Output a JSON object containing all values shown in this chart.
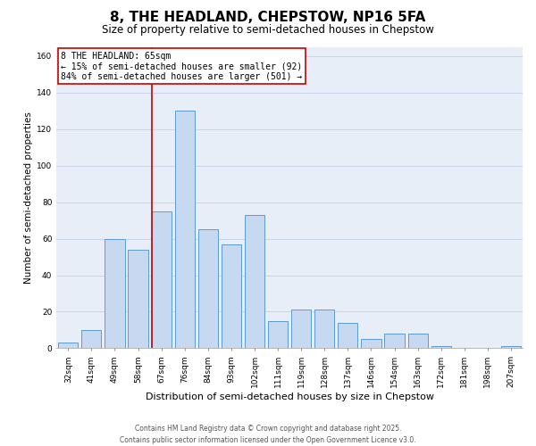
{
  "title": "8, THE HEADLAND, CHEPSTOW, NP16 5FA",
  "subtitle": "Size of property relative to semi-detached houses in Chepstow",
  "xlabel": "Distribution of semi-detached houses by size in Chepstow",
  "ylabel": "Number of semi-detached properties",
  "categories": [
    "32sqm",
    "41sqm",
    "49sqm",
    "58sqm",
    "67sqm",
    "76sqm",
    "84sqm",
    "93sqm",
    "102sqm",
    "111sqm",
    "119sqm",
    "128sqm",
    "137sqm",
    "146sqm",
    "154sqm",
    "163sqm",
    "172sqm",
    "181sqm",
    "198sqm",
    "207sqm"
  ],
  "values": [
    3,
    10,
    60,
    54,
    75,
    130,
    65,
    57,
    73,
    15,
    21,
    21,
    14,
    5,
    8,
    8,
    1,
    0,
    0,
    1
  ],
  "bar_color": "#c6d9f0",
  "bar_edge_color": "#5b9bd5",
  "highlight_line_color": "#cc0000",
  "annotation_box_text": "8 THE HEADLAND: 65sqm\n← 15% of semi-detached houses are smaller (92)\n84% of semi-detached houses are larger (501) →",
  "annotation_box_color": "#cc0000",
  "annotation_box_fill": "#ffffff",
  "ylim": [
    0,
    165
  ],
  "yticks": [
    0,
    20,
    40,
    60,
    80,
    100,
    120,
    140,
    160
  ],
  "grid_color": "#c8d4e8",
  "background_color": "#e8eef8",
  "footer_text": "Contains HM Land Registry data © Crown copyright and database right 2025.\nContains public sector information licensed under the Open Government Licence v3.0.",
  "title_fontsize": 11,
  "subtitle_fontsize": 8.5,
  "xlabel_fontsize": 8,
  "ylabel_fontsize": 7.5,
  "tick_fontsize": 6.5,
  "annotation_fontsize": 7,
  "footer_fontsize": 5.5
}
